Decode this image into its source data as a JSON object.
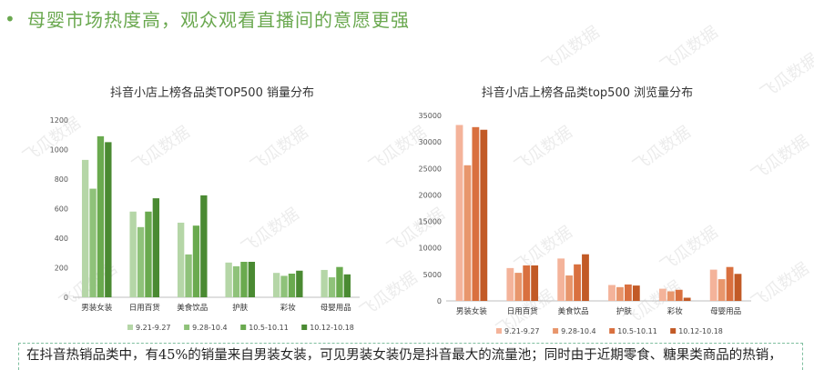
{
  "headline": {
    "bullet": "•",
    "text": "母婴市场热度高，观众观看直播间的意愿更强"
  },
  "watermark_text": "飞瓜数据",
  "conclusion_text": "在抖音热销品类中，有45%的销量来自男装女装，可见男装女装仍是抖音最大的流量池；同时由于近期零食、糖果类商品的热销，",
  "chart_data": [
    {
      "type": "bar",
      "title": "抖音小店上榜各品类TOP500 销量分布",
      "categories": [
        "男装女装",
        "日用百货",
        "美食饮品",
        "护肤",
        "彩妆",
        "母婴用品"
      ],
      "ylim": [
        0,
        1200
      ],
      "yticks": [
        0,
        200,
        400,
        600,
        800,
        1000,
        1200
      ],
      "legend_position": "bottom",
      "series": [
        {
          "name": "9.21-9.27",
          "color": "#b5d6a7",
          "values": [
            930,
            580,
            505,
            235,
            165,
            185
          ]
        },
        {
          "name": "9.28-10.4",
          "color": "#8fc27a",
          "values": [
            735,
            475,
            290,
            210,
            145,
            135
          ]
        },
        {
          "name": "10.5-10.11",
          "color": "#6aaa4f",
          "values": [
            1090,
            580,
            485,
            240,
            160,
            205
          ]
        },
        {
          "name": "10.12-10.18",
          "color": "#4a8a32",
          "values": [
            1050,
            670,
            690,
            240,
            180,
            155
          ]
        }
      ]
    },
    {
      "type": "bar",
      "title": "抖音小店上榜各品类top500 浏览量分布",
      "categories": [
        "男装女装",
        "日用百货",
        "美食饮品",
        "护肤",
        "彩妆",
        "母婴用品"
      ],
      "ylim": [
        0,
        35000
      ],
      "yticks": [
        0,
        5000,
        10000,
        15000,
        20000,
        25000,
        30000,
        35000
      ],
      "legend_position": "bottom",
      "series": [
        {
          "name": "9.21-9.27",
          "color": "#f4b39a",
          "values": [
            33200,
            6200,
            8000,
            3000,
            2300,
            5900
          ]
        },
        {
          "name": "9.28-10.4",
          "color": "#e8966c",
          "values": [
            25600,
            5300,
            4800,
            2600,
            1800,
            4100
          ]
        },
        {
          "name": "10.5-10.11",
          "color": "#d9703f",
          "values": [
            32800,
            6700,
            6900,
            3100,
            2100,
            6400
          ]
        },
        {
          "name": "10.12-10.18",
          "color": "#c25a26",
          "values": [
            32300,
            6700,
            8800,
            2900,
            600,
            5100
          ]
        }
      ]
    }
  ]
}
